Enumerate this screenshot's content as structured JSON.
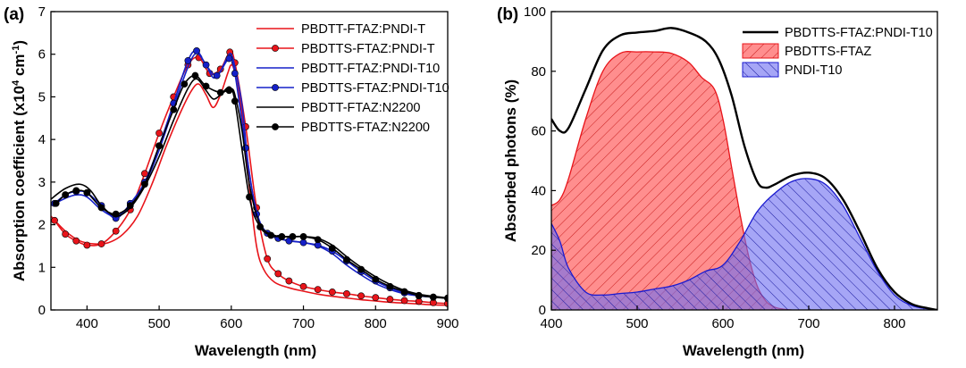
{
  "chart_data": [
    {
      "panel_label": "(a)",
      "type": "line",
      "xlabel": "Wavelength (nm)",
      "ylabel_parts": [
        "Absorption coefficient (x10",
        "4",
        " cm",
        "-1",
        ")"
      ],
      "xlim": [
        350,
        900
      ],
      "ylim": [
        0,
        7
      ],
      "xticks": [
        400,
        500,
        600,
        700,
        800,
        900
      ],
      "yticks": [
        0,
        1,
        2,
        3,
        4,
        5,
        6,
        7
      ],
      "legend_position": "top-right",
      "series": [
        {
          "name": "PBDTT-FTAZ:PNDI-T",
          "color": "#e8141a",
          "marker": false,
          "x": [
            350,
            370,
            390,
            410,
            430,
            450,
            470,
            490,
            510,
            530,
            545,
            555,
            565,
            575,
            585,
            595,
            600,
            605,
            615,
            625,
            635,
            645,
            660,
            680,
            700,
            720,
            740,
            760,
            780,
            800,
            820,
            840,
            860,
            880,
            900
          ],
          "y": [
            2.2,
            1.85,
            1.62,
            1.55,
            1.58,
            1.78,
            2.2,
            2.95,
            3.85,
            4.65,
            5.15,
            5.3,
            5.05,
            4.75,
            5.05,
            5.55,
            5.75,
            5.55,
            4.6,
            2.9,
            1.5,
            0.95,
            0.65,
            0.52,
            0.44,
            0.37,
            0.32,
            0.28,
            0.24,
            0.21,
            0.18,
            0.16,
            0.14,
            0.12,
            0.11
          ]
        },
        {
          "name": "PBDTTS-FTAZ:PNDI-T",
          "color": "#e8141a",
          "marker": true,
          "x": [
            355,
            370,
            385,
            400,
            420,
            440,
            460,
            480,
            500,
            520,
            540,
            555,
            570,
            585,
            598,
            605,
            620,
            635,
            650,
            665,
            680,
            700,
            720,
            740,
            760,
            780,
            800,
            820,
            840,
            860,
            880,
            900
          ],
          "y": [
            2.1,
            1.78,
            1.62,
            1.52,
            1.55,
            1.85,
            2.35,
            3.2,
            4.15,
            5.0,
            5.75,
            5.92,
            5.55,
            5.65,
            6.05,
            5.8,
            4.3,
            2.4,
            1.2,
            0.85,
            0.68,
            0.55,
            0.48,
            0.42,
            0.38,
            0.33,
            0.29,
            0.25,
            0.22,
            0.2,
            0.17,
            0.15
          ]
        },
        {
          "name": "PBDTT-FTAZ:PNDI-T10",
          "color": "#1520c8",
          "marker": false,
          "x": [
            350,
            370,
            385,
            400,
            420,
            440,
            460,
            480,
            500,
            520,
            540,
            552,
            565,
            575,
            585,
            595,
            600,
            605,
            615,
            625,
            640,
            660,
            680,
            700,
            720,
            740,
            760,
            780,
            800,
            820,
            840,
            860,
            880,
            900
          ],
          "y": [
            2.45,
            2.62,
            2.7,
            2.65,
            2.35,
            2.2,
            2.45,
            2.95,
            3.75,
            4.75,
            5.7,
            6.02,
            5.75,
            5.45,
            5.6,
            5.95,
            6.0,
            5.7,
            4.8,
            3.2,
            2.05,
            1.72,
            1.63,
            1.58,
            1.5,
            1.32,
            1.05,
            0.82,
            0.62,
            0.48,
            0.38,
            0.33,
            0.3,
            0.28
          ]
        },
        {
          "name": "PBDTTS-FTAZ:PNDI-T10",
          "color": "#1520c8",
          "marker": true,
          "x": [
            355,
            370,
            385,
            400,
            420,
            440,
            460,
            480,
            500,
            520,
            540,
            552,
            565,
            580,
            597,
            605,
            620,
            635,
            650,
            665,
            680,
            700,
            720,
            740,
            760,
            780,
            800,
            820,
            840,
            860,
            880,
            900
          ],
          "y": [
            2.5,
            2.7,
            2.78,
            2.75,
            2.45,
            2.15,
            2.5,
            3.0,
            3.85,
            4.85,
            5.85,
            6.08,
            5.75,
            5.5,
            5.9,
            5.55,
            3.8,
            2.25,
            1.8,
            1.68,
            1.62,
            1.58,
            1.52,
            1.38,
            1.15,
            0.9,
            0.68,
            0.52,
            0.4,
            0.33,
            0.3,
            0.28
          ]
        },
        {
          "name": "PBDTT-FTAZ:N2200",
          "color": "#000000",
          "marker": false,
          "x": [
            350,
            370,
            390,
            405,
            420,
            440,
            460,
            480,
            500,
            520,
            540,
            552,
            565,
            575,
            585,
            595,
            600,
            605,
            615,
            625,
            640,
            660,
            680,
            700,
            720,
            740,
            760,
            780,
            800,
            820,
            840,
            860,
            880,
            900
          ],
          "y": [
            2.6,
            2.85,
            2.95,
            2.8,
            2.45,
            2.2,
            2.4,
            2.9,
            3.6,
            4.45,
            5.2,
            5.42,
            5.15,
            4.95,
            5.05,
            5.22,
            5.2,
            5.05,
            4.2,
            2.95,
            2.0,
            1.75,
            1.72,
            1.72,
            1.68,
            1.52,
            1.25,
            1.0,
            0.78,
            0.6,
            0.46,
            0.37,
            0.32,
            0.28
          ]
        },
        {
          "name": "PBDTTS-FTAZ:N2200",
          "color": "#000000",
          "marker": true,
          "x": [
            357,
            370,
            385,
            400,
            420,
            440,
            460,
            480,
            500,
            520,
            535,
            550,
            565,
            585,
            597,
            605,
            625,
            640,
            655,
            670,
            685,
            700,
            720,
            740,
            760,
            780,
            800,
            820,
            840,
            860,
            880,
            900
          ],
          "y": [
            2.5,
            2.7,
            2.8,
            2.75,
            2.4,
            2.25,
            2.45,
            2.95,
            3.85,
            4.7,
            5.3,
            5.5,
            5.25,
            5.1,
            5.15,
            4.9,
            2.65,
            1.95,
            1.75,
            1.72,
            1.72,
            1.72,
            1.65,
            1.45,
            1.18,
            0.95,
            0.72,
            0.55,
            0.43,
            0.34,
            0.3,
            0.27
          ]
        }
      ]
    },
    {
      "panel_label": "(b)",
      "type": "area",
      "xlabel": "Wavelength (nm)",
      "ylabel": "Absorbed photons (%)",
      "xlim": [
        400,
        850
      ],
      "ylim": [
        0,
        100
      ],
      "xticks": [
        400,
        500,
        600,
        700,
        800
      ],
      "yticks": [
        0,
        20,
        40,
        60,
        80,
        100
      ],
      "legend_position": "top-right",
      "series": [
        {
          "name": "PBDTTS-FTAZ:PNDI-T10",
          "style": "line",
          "color": "#000000",
          "x": [
            400,
            410,
            420,
            440,
            460,
            480,
            500,
            520,
            540,
            560,
            580,
            595,
            610,
            625,
            640,
            650,
            660,
            680,
            700,
            720,
            740,
            760,
            780,
            800,
            820,
            840,
            850
          ],
          "y": [
            64,
            60,
            61,
            74,
            87,
            92,
            93,
            93.5,
            94.5,
            93,
            90,
            84,
            72,
            55,
            43,
            41,
            42,
            45,
            46,
            44,
            37,
            26,
            14,
            6,
            2,
            0.5,
            0
          ]
        },
        {
          "name": "PBDTTS-FTAZ",
          "style": "fill-hatched",
          "color": "#ff4d4d",
          "x": [
            400,
            410,
            420,
            440,
            460,
            480,
            500,
            520,
            540,
            560,
            575,
            590,
            600,
            610,
            620,
            630,
            640,
            650,
            660,
            670,
            680
          ],
          "y": [
            35,
            37,
            44,
            64,
            80,
            86,
            86.5,
            86.5,
            86,
            83,
            78,
            74,
            64,
            48,
            32,
            18,
            8,
            3,
            1,
            0.3,
            0
          ]
        },
        {
          "name": "PNDI-T10",
          "style": "fill-hatched",
          "color": "#4040e0",
          "x": [
            400,
            410,
            420,
            440,
            460,
            480,
            500,
            520,
            540,
            560,
            580,
            600,
            620,
            640,
            660,
            680,
            700,
            720,
            740,
            760,
            780,
            800,
            820,
            840,
            850
          ],
          "y": [
            29,
            23,
            14,
            6,
            5,
            5.5,
            6,
            7,
            8,
            10,
            13,
            15,
            23,
            33,
            39,
            43,
            44,
            42,
            35,
            24,
            13,
            5,
            1.5,
            0.3,
            0
          ]
        }
      ]
    }
  ]
}
